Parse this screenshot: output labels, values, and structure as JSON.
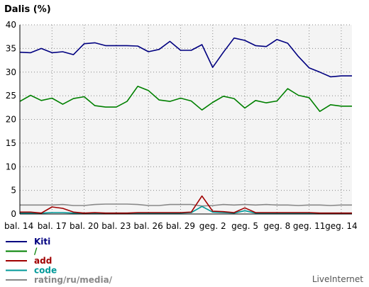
{
  "chart_data": {
    "type": "line",
    "title": "Dalis (%)",
    "xlabel": "",
    "ylabel": "",
    "ylim": [
      0,
      40
    ],
    "yticks": [
      0,
      5,
      10,
      15,
      20,
      25,
      30,
      35,
      40
    ],
    "x_tick_labels": [
      {
        "i": 0,
        "label": "bal. 14"
      },
      {
        "i": 3,
        "label": "bal. 17"
      },
      {
        "i": 6,
        "label": "bal. 20"
      },
      {
        "i": 9,
        "label": "bal. 23"
      },
      {
        "i": 12,
        "label": "bal. 26"
      },
      {
        "i": 15,
        "label": "bal. 29"
      },
      {
        "i": 18,
        "label": "geg. 2"
      },
      {
        "i": 21,
        "label": "geg. 5"
      },
      {
        "i": 24,
        "label": "geg. 8"
      },
      {
        "i": 27,
        "label": "geg. 11"
      },
      {
        "i": 30,
        "label": "geg. 14"
      }
    ],
    "grid": true,
    "legend_position": "bottom-left",
    "series": [
      {
        "name": "Kiti",
        "color": "#000080",
        "values": [
          34.2,
          34.1,
          35.0,
          34.1,
          34.3,
          33.7,
          36.0,
          36.2,
          35.6,
          35.6,
          35.6,
          35.5,
          34.3,
          34.8,
          36.5,
          34.6,
          34.6,
          35.8,
          31.0,
          34.2,
          37.2,
          36.7,
          35.6,
          35.4,
          36.9,
          36.1,
          33.3,
          30.9,
          30.0,
          29.0,
          29.2,
          29.2
        ]
      },
      {
        "name": "/",
        "color": "#008000",
        "values": [
          23.8,
          25.1,
          24.0,
          24.5,
          23.2,
          24.4,
          24.8,
          22.9,
          22.6,
          22.6,
          23.8,
          27.0,
          26.1,
          24.1,
          23.8,
          24.5,
          23.9,
          22.0,
          23.6,
          24.9,
          24.4,
          22.4,
          24.0,
          23.5,
          23.9,
          26.5,
          25.1,
          24.6,
          21.7,
          23.1,
          22.8,
          22.8
        ]
      },
      {
        "name": "add",
        "color": "#a00000",
        "values": [
          0.4,
          0.4,
          0.2,
          1.5,
          1.2,
          0.4,
          0.2,
          0.3,
          0.2,
          0.2,
          0.2,
          0.3,
          0.3,
          0.3,
          0.3,
          0.3,
          0.4,
          3.8,
          0.6,
          0.5,
          0.3,
          1.3,
          0.3,
          0.3,
          0.3,
          0.3,
          0.3,
          0.3,
          0.2,
          0.2,
          0.2,
          0.2
        ]
      },
      {
        "name": "code",
        "color": "#009999",
        "values": [
          0.2,
          0.2,
          0.2,
          0.3,
          0.3,
          0.2,
          0.2,
          0.2,
          0.2,
          0.2,
          0.2,
          0.2,
          0.2,
          0.2,
          0.2,
          0.2,
          0.3,
          1.6,
          0.4,
          0.3,
          0.2,
          0.7,
          0.2,
          0.2,
          0.2,
          0.2,
          0.2,
          0.2,
          0.2,
          0.2,
          0.2,
          0.2
        ]
      },
      {
        "name": "rating/ru/media/",
        "color": "#888888",
        "values": [
          1.9,
          1.9,
          1.9,
          1.9,
          2.0,
          1.8,
          1.8,
          2.0,
          2.1,
          2.1,
          2.1,
          2.0,
          1.8,
          1.8,
          2.0,
          2.0,
          2.0,
          1.7,
          1.8,
          2.0,
          1.9,
          2.0,
          1.9,
          2.0,
          1.9,
          1.9,
          1.8,
          1.9,
          1.9,
          1.8,
          1.9,
          1.9
        ]
      }
    ]
  },
  "branding": {
    "text": "LiveInternet"
  }
}
